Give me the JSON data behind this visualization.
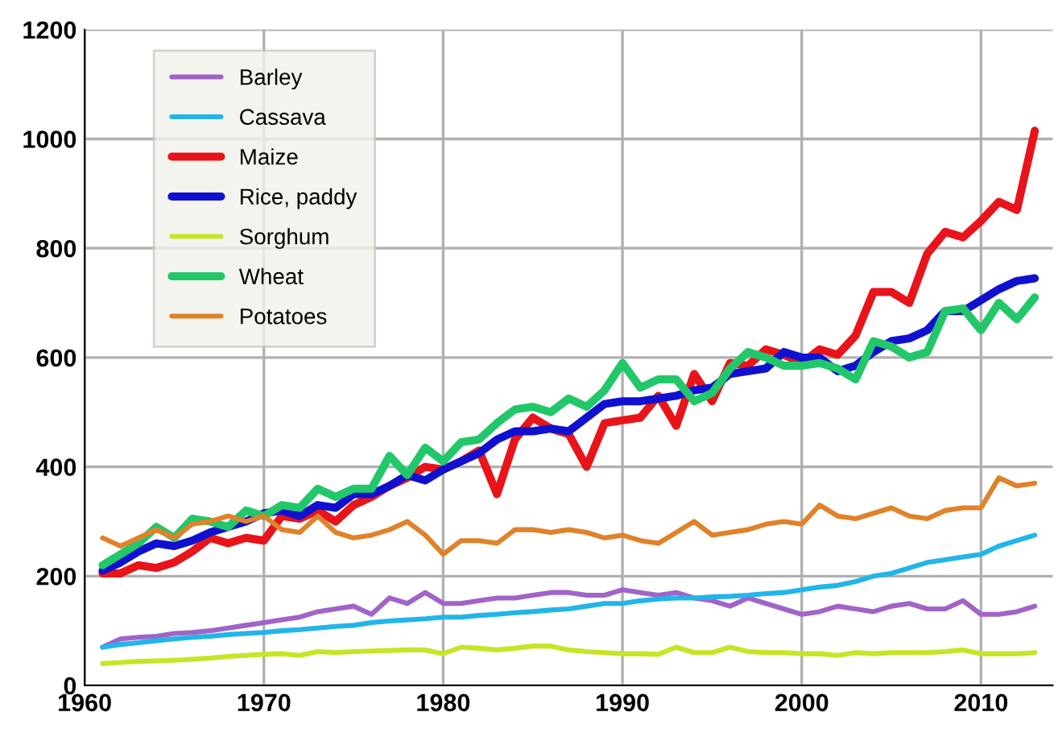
{
  "chart_data": {
    "type": "line",
    "x": [
      1961,
      1962,
      1963,
      1964,
      1965,
      1966,
      1967,
      1968,
      1969,
      1970,
      1971,
      1972,
      1973,
      1974,
      1975,
      1976,
      1977,
      1978,
      1979,
      1980,
      1981,
      1982,
      1983,
      1984,
      1985,
      1986,
      1987,
      1988,
      1989,
      1990,
      1991,
      1992,
      1993,
      1994,
      1995,
      1996,
      1997,
      1998,
      1999,
      2000,
      2001,
      2002,
      2003,
      2004,
      2005,
      2006,
      2007,
      2008,
      2009,
      2010,
      2011,
      2012,
      2013
    ],
    "series": [
      {
        "name": "Barley",
        "color": "#a064c8",
        "values": [
          70,
          85,
          88,
          90,
          95,
          97,
          100,
          105,
          110,
          115,
          120,
          125,
          135,
          140,
          145,
          130,
          160,
          150,
          170,
          150,
          150,
          155,
          160,
          160,
          165,
          170,
          170,
          165,
          165,
          175,
          170,
          165,
          170,
          160,
          155,
          145,
          160,
          150,
          140,
          130,
          135,
          145,
          140,
          135,
          145,
          150,
          140,
          140,
          155,
          130,
          130,
          135,
          145
        ]
      },
      {
        "name": "Cassava",
        "color": "#22b5e8",
        "values": [
          70,
          75,
          78,
          82,
          85,
          88,
          90,
          93,
          95,
          97,
          100,
          102,
          105,
          108,
          110,
          115,
          118,
          120,
          122,
          125,
          125,
          128,
          130,
          133,
          135,
          138,
          140,
          145,
          150,
          150,
          155,
          158,
          160,
          160,
          162,
          163,
          165,
          168,
          170,
          175,
          180,
          183,
          190,
          200,
          205,
          215,
          225,
          230,
          235,
          240,
          255,
          265,
          275
        ]
      },
      {
        "name": "Maize",
        "color": "#e8141a",
        "values": [
          205,
          205,
          220,
          215,
          225,
          245,
          270,
          260,
          270,
          265,
          310,
          305,
          320,
          300,
          330,
          345,
          365,
          380,
          400,
          395,
          410,
          430,
          350,
          450,
          490,
          470,
          460,
          400,
          480,
          485,
          490,
          530,
          475,
          570,
          520,
          590,
          585,
          615,
          605,
          590,
          615,
          605,
          640,
          720,
          720,
          700,
          790,
          830,
          820,
          850,
          885,
          870,
          1015
        ]
      },
      {
        "name": "Rice, paddy",
        "color": "#1010d0",
        "values": [
          210,
          225,
          245,
          260,
          255,
          265,
          280,
          290,
          300,
          315,
          320,
          310,
          330,
          325,
          350,
          350,
          365,
          385,
          375,
          395,
          410,
          425,
          450,
          465,
          465,
          470,
          465,
          490,
          515,
          520,
          520,
          525,
          530,
          540,
          545,
          570,
          575,
          580,
          610,
          600,
          600,
          575,
          585,
          610,
          630,
          635,
          650,
          685,
          685,
          705,
          725,
          740,
          745
        ]
      },
      {
        "name": "Sorghum",
        "color": "#c5e626",
        "values": [
          40,
          42,
          44,
          45,
          46,
          48,
          50,
          53,
          55,
          57,
          58,
          55,
          62,
          60,
          62,
          63,
          64,
          65,
          65,
          58,
          70,
          68,
          65,
          68,
          72,
          72,
          65,
          62,
          60,
          58,
          58,
          57,
          70,
          60,
          60,
          70,
          62,
          60,
          60,
          58,
          58,
          55,
          60,
          58,
          60,
          60,
          60,
          62,
          65,
          58,
          58,
          58,
          60
        ]
      },
      {
        "name": "Wheat",
        "color": "#22c76a",
        "values": [
          220,
          240,
          260,
          290,
          270,
          305,
          300,
          290,
          320,
          310,
          330,
          325,
          360,
          345,
          360,
          360,
          420,
          385,
          435,
          410,
          445,
          450,
          480,
          505,
          510,
          500,
          525,
          510,
          540,
          590,
          545,
          560,
          560,
          520,
          535,
          580,
          610,
          600,
          585,
          585,
          590,
          580,
          560,
          630,
          620,
          600,
          610,
          685,
          690,
          650,
          700,
          670,
          710
        ]
      },
      {
        "name": "Potatoes",
        "color": "#e0822a",
        "values": [
          270,
          255,
          270,
          285,
          270,
          295,
          300,
          310,
          300,
          310,
          285,
          280,
          310,
          280,
          270,
          275,
          285,
          300,
          275,
          240,
          265,
          265,
          260,
          285,
          285,
          280,
          285,
          280,
          270,
          275,
          265,
          260,
          280,
          300,
          275,
          280,
          285,
          295,
          300,
          295,
          330,
          310,
          305,
          315,
          325,
          310,
          305,
          320,
          325,
          325,
          380,
          365,
          370
        ]
      }
    ],
    "xlim": [
      1960,
      2014
    ],
    "xticks": [
      1960,
      1970,
      1980,
      1990,
      2000,
      2010
    ],
    "ylim": [
      0,
      1200
    ],
    "yticks": [
      0,
      200,
      400,
      600,
      800,
      1000,
      1200
    ],
    "grid": true,
    "legend": "top left",
    "marker": "none",
    "line_style": "solid"
  }
}
